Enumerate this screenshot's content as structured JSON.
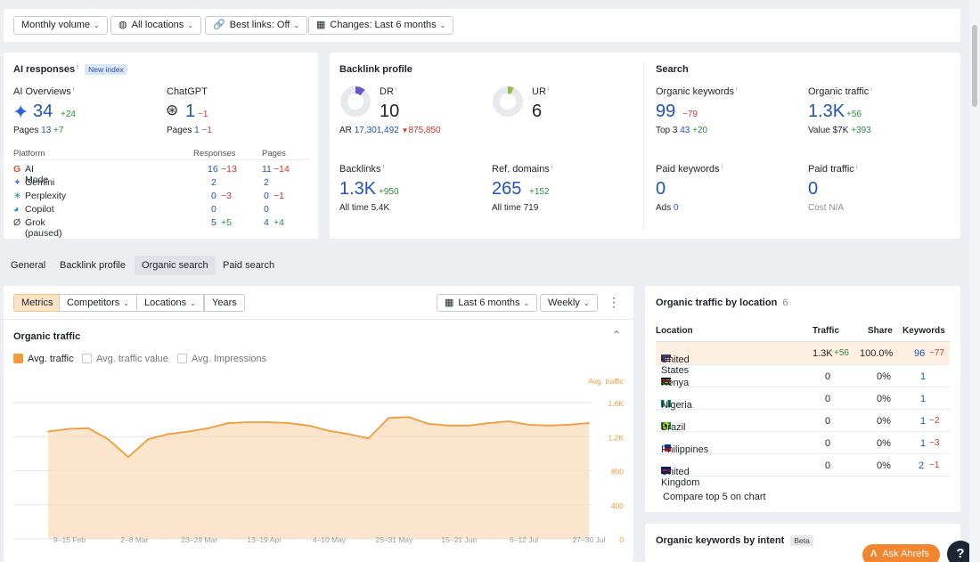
{
  "filters": {
    "monthly_volume": "Monthly volume",
    "locations": "All locations",
    "best_links": "Best links: Off",
    "changes": "Changes: Last 6 months"
  },
  "ai": {
    "title": "AI responses",
    "badge": "New index",
    "ai_overviews": {
      "label": "AI Overviews",
      "value": "34",
      "delta": "+24",
      "pages_label": "Pages",
      "pages_value": "13",
      "pages_delta": "+7"
    },
    "chatgpt": {
      "label": "ChatGPT",
      "value": "1",
      "delta": "−1",
      "pages_label": "Pages",
      "pages_value": "1",
      "pages_delta": "−1"
    },
    "table_headers": [
      "Platform",
      "Responses",
      "Pages"
    ],
    "platforms": [
      {
        "name": "AI Mode",
        "responses": "16",
        "resp_delta": "−13",
        "pages": "11",
        "pages_delta": "−14"
      },
      {
        "name": "Gemini",
        "responses": "2",
        "resp_delta": "",
        "pages": "2",
        "pages_delta": ""
      },
      {
        "name": "Perplexity",
        "responses": "0",
        "resp_delta": "−3",
        "pages": "0",
        "pages_delta": "−1"
      },
      {
        "name": "Copilot",
        "responses": "0",
        "resp_delta": "",
        "pages": "0",
        "pages_delta": ""
      },
      {
        "name": "Grok (paused)",
        "responses": "5",
        "resp_delta": "+5",
        "pages": "4",
        "pages_delta": "+4"
      }
    ]
  },
  "backlink": {
    "title": "Backlink profile",
    "dr": {
      "label": "DR",
      "value": "10"
    },
    "ur": {
      "label": "UR",
      "value": "6"
    },
    "ar_label": "AR",
    "ar_value": "17,301,492",
    "ar_delta": "875,850",
    "backlinks": {
      "label": "Backlinks",
      "value": "1.3K",
      "delta": "+950",
      "sub_label": "All time",
      "sub_value": "5.4K"
    },
    "ref_domains": {
      "label": "Ref. domains",
      "value": "265",
      "delta": "+152",
      "sub_label": "All time",
      "sub_value": "719"
    }
  },
  "search": {
    "title": "Search",
    "organic_keywords": {
      "label": "Organic keywords",
      "value": "99",
      "delta": "−79",
      "sub_label": "Top 3",
      "sub_value": "43",
      "sub_delta": "+20"
    },
    "organic_traffic": {
      "label": "Organic traffic",
      "value": "1.3K",
      "delta": "+56",
      "sub_label": "Value",
      "sub_value": "$7K",
      "sub_delta": "+393"
    },
    "paid_keywords": {
      "label": "Paid keywords",
      "value": "0",
      "sub_label": "Ads",
      "sub_value": "0"
    },
    "paid_traffic": {
      "label": "Paid traffic",
      "value": "0",
      "sub_label": "Cost",
      "sub_value": "N/A"
    }
  },
  "tabs": [
    "General",
    "Backlink profile",
    "Organic search",
    "Paid search"
  ],
  "segments": [
    "Metrics",
    "Competitors",
    "Locations",
    "Years"
  ],
  "range_label": "Last 6 months",
  "interval_label": "Weekly",
  "organic_section": {
    "title": "Organic traffic",
    "checkboxes": [
      "Avg. traffic",
      "Avg. traffic value",
      "Avg. Impressions"
    ]
  },
  "chart_data": {
    "type": "area",
    "series": [
      {
        "name": "Avg. traffic",
        "values": [
          1260,
          1290,
          1300,
          1170,
          960,
          1170,
          1230,
          1260,
          1300,
          1360,
          1370,
          1370,
          1360,
          1330,
          1270,
          1230,
          1180,
          1420,
          1430,
          1350,
          1330,
          1330,
          1360,
          1380,
          1340,
          1330,
          1340,
          1360
        ]
      }
    ],
    "x_tick_labels": [
      "9–15 Feb",
      "2–8 Mar",
      "23–29 Mar",
      "13–19 Apr",
      "4–10 May",
      "25–31 May",
      "15–21 Jun",
      "6–12 Jul",
      "27–30 Jul"
    ],
    "y_ticks": [
      "1.6K",
      "1.2K",
      "800",
      "400",
      "0"
    ],
    "y_axis_label": "Avg. traffic",
    "ylim": [
      0,
      1600
    ],
    "color": "#f29b38"
  },
  "location_panel": {
    "title": "Organic traffic by location",
    "count": "6",
    "headers": [
      "Location",
      "Traffic",
      "Share",
      "Keywords"
    ],
    "rows": [
      {
        "country": "United States",
        "traffic": "1.3K",
        "traffic_delta": "+56",
        "share": "100.0%",
        "keywords": "96",
        "kw_delta": "−77"
      },
      {
        "country": "Kenya",
        "traffic": "0",
        "traffic_delta": "",
        "share": "0%",
        "keywords": "1",
        "kw_delta": ""
      },
      {
        "country": "Nigeria",
        "traffic": "0",
        "traffic_delta": "",
        "share": "0%",
        "keywords": "1",
        "kw_delta": ""
      },
      {
        "country": "Brazil",
        "traffic": "0",
        "traffic_delta": "",
        "share": "0%",
        "keywords": "1",
        "kw_delta": "−2"
      },
      {
        "country": "Philippines",
        "traffic": "0",
        "traffic_delta": "",
        "share": "0%",
        "keywords": "1",
        "kw_delta": "−3"
      },
      {
        "country": "United Kingdom",
        "traffic": "0",
        "traffic_delta": "",
        "share": "0%",
        "keywords": "2",
        "kw_delta": "−1"
      }
    ],
    "compare_label": "Compare top 5 on chart"
  },
  "intent_panel": {
    "title": "Organic keywords by intent",
    "badge": "Beta"
  },
  "ask_button": "Ask Ahrefs",
  "help_label": "?"
}
